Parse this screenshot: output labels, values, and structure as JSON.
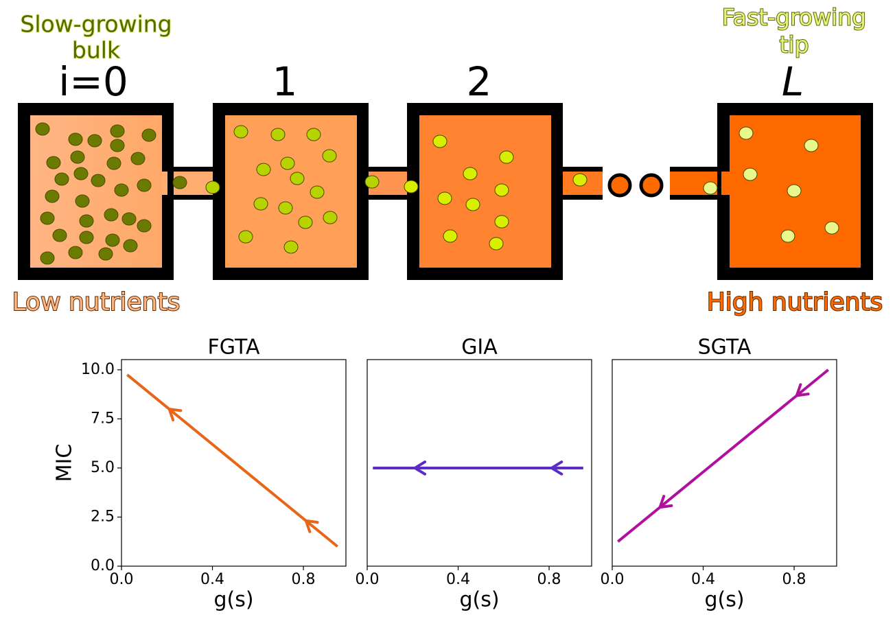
{
  "diagram": {
    "left_title": [
      "Slow-growing",
      "bulk"
    ],
    "right_title": [
      "Fast-growing",
      "tip"
    ],
    "chambers": [
      "i=0",
      "1",
      "2",
      "L"
    ],
    "left_caption": "Low nutrients",
    "right_caption": "High nutrients"
  },
  "chart_data": [
    {
      "type": "line",
      "title": "FGTA",
      "x_label": "g(s)",
      "y_label": "MIC",
      "x": [
        0.025,
        0.95
      ],
      "values": [
        9.75,
        1.0
      ],
      "color": "#e8661a",
      "xlim": [
        0,
        0.987
      ],
      "ylim": [
        0,
        10.52
      ],
      "xticks": [
        {
          "value": 0,
          "label": "0.0"
        },
        0.4,
        0.8
      ],
      "yticks": [
        {
          "value": 0,
          "label": "0.0"
        },
        2.5,
        {
          "value": 5,
          "label": "5.0"
        },
        7.5,
        {
          "value": 10,
          "label": "10.0"
        }
      ]
    },
    {
      "type": "line",
      "title": "GIA",
      "x_label": "g(s)",
      "x": [
        0.025,
        0.95
      ],
      "values": [
        5,
        5
      ],
      "color": "#5b2bc4",
      "xlim": [
        0,
        0.987
      ],
      "ylim": [
        0,
        10.52
      ],
      "xticks": [
        {
          "value": 0,
          "label": "0.0"
        },
        0.4,
        0.8
      ]
    },
    {
      "type": "line",
      "title": "SGTA",
      "x_label": "g(s)",
      "x": [
        0.025,
        0.95
      ],
      "values": [
        1.25,
        10.0
      ],
      "color": "#b0109c",
      "xlim": [
        0,
        0.987
      ],
      "ylim": [
        0,
        10.52
      ],
      "xticks": [
        {
          "value": 0,
          "label": "0.0"
        },
        0.4,
        0.8
      ]
    }
  ]
}
